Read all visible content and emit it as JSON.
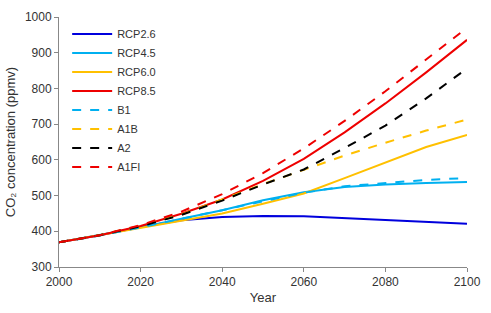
{
  "chart_data": {
    "type": "line",
    "x_label": "Year",
    "y_label": "CO₂ concentration (ppmv)",
    "x": [
      2000,
      2010,
      2020,
      2030,
      2040,
      2050,
      2060,
      2070,
      2080,
      2090,
      2100
    ],
    "series": [
      {
        "name": "RCP2.6",
        "color": "#0000dd",
        "line_style": "solid",
        "values": [
          369,
          389,
          412,
          431,
          440,
          443,
          442,
          437,
          432,
          426,
          421
        ]
      },
      {
        "name": "RCP4.5",
        "color": "#00b0f0",
        "line_style": "solid",
        "values": [
          369,
          389,
          411,
          435,
          459,
          487,
          509,
          524,
          531,
          535,
          538
        ]
      },
      {
        "name": "RCP6.0",
        "color": "#ffc000",
        "line_style": "solid",
        "values": [
          369,
          389,
          409,
          428,
          450,
          477,
          506,
          549,
          593,
          636,
          670
        ]
      },
      {
        "name": "RCP8.5",
        "color": "#ee0000",
        "line_style": "solid",
        "values": [
          369,
          389,
          415,
          449,
          489,
          541,
          603,
          677,
          758,
          845,
          936
        ]
      },
      {
        "name": "B1",
        "color": "#00b0f0",
        "line_style": "dash",
        "values": [
          369,
          388,
          411,
          434,
          459,
          484,
          508,
          526,
          536,
          544,
          549
        ]
      },
      {
        "name": "A1B",
        "color": "#ffc000",
        "line_style": "dash",
        "values": [
          369,
          389,
          416,
          447,
          489,
          532,
          572,
          612,
          648,
          682,
          713
        ]
      },
      {
        "name": "A2",
        "color": "#000000",
        "line_style": "dash",
        "values": [
          369,
          389,
          414,
          446,
          486,
          531,
          573,
          633,
          696,
          772,
          856
        ]
      },
      {
        "name": "A1FI",
        "color": "#ee0000",
        "line_style": "dash",
        "values": [
          369,
          389,
          417,
          455,
          504,
          563,
          632,
          709,
          792,
          880,
          970
        ]
      }
    ],
    "xlim": [
      2000,
      2100
    ],
    "xticks": [
      2000,
      2020,
      2040,
      2060,
      2080,
      2100
    ],
    "ylim": [
      300,
      1000
    ],
    "yticks": [
      300,
      400,
      500,
      600,
      700,
      800,
      900,
      1000
    ],
    "grid": false,
    "legend": "top-left"
  }
}
